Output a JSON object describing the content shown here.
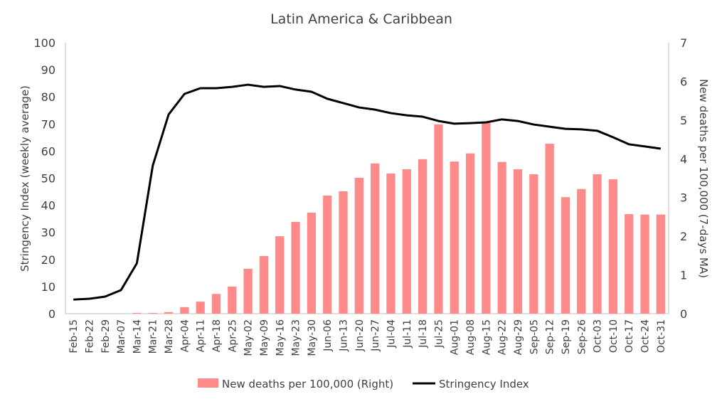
{
  "chart_data": {
    "type": "bar+line",
    "title": "Latin America & Caribbean",
    "ylabel_left": "Stringency Index (weekly average)",
    "ylabel_right": "New deaths per 100,000 (7-days MA)",
    "ylim_left": [
      0,
      100
    ],
    "ylim_right": [
      0,
      7
    ],
    "yticks_left": [
      0,
      10,
      20,
      30,
      40,
      50,
      60,
      70,
      80,
      90,
      100
    ],
    "yticks_right": [
      0,
      1,
      2,
      3,
      4,
      5,
      6,
      7
    ],
    "grid": false,
    "legend_position": "bottom",
    "categories": [
      "Feb-15",
      "Feb-22",
      "Feb-29",
      "Mar-07",
      "Mar-14",
      "Mar-21",
      "Mar-28",
      "Apr-04",
      "Apr-11",
      "Apr-18",
      "Apr-25",
      "May-02",
      "May-09",
      "May-16",
      "May-23",
      "May-30",
      "Jun-06",
      "Jun-13",
      "Jun-20",
      "Jun-27",
      "Jul-04",
      "Jul-11",
      "Jul-18",
      "Jul-25",
      "Aug-01",
      "Aug-08",
      "Aug-15",
      "Aug-22",
      "Aug-29",
      "Sep-05",
      "Sep-12",
      "Sep-19",
      "Sep-26",
      "Oct-03",
      "Oct-10",
      "Oct-17",
      "Oct-24",
      "Oct-31"
    ],
    "series": [
      {
        "name": "New deaths per 100,000 (Right)",
        "type": "bar",
        "axis": "right",
        "color": "#FF8A8A",
        "values": [
          0,
          0,
          0,
          0,
          0.02,
          0.02,
          0.04,
          0.17,
          0.31,
          0.51,
          0.7,
          1.16,
          1.49,
          2.0,
          2.37,
          2.61,
          3.05,
          3.16,
          3.51,
          3.88,
          3.62,
          3.73,
          3.99,
          4.89,
          3.93,
          4.14,
          4.93,
          3.92,
          3.73,
          3.6,
          4.39,
          3.01,
          3.22,
          3.6,
          3.47,
          2.57,
          2.56,
          2.56
        ]
      },
      {
        "name": "Stringency Index",
        "type": "line",
        "axis": "left",
        "color": "#000000",
        "values": [
          5.2,
          5.5,
          6.3,
          8.7,
          18.6,
          54.6,
          73.5,
          81.1,
          83.2,
          83.2,
          83.7,
          84.5,
          83.7,
          84.0,
          82.7,
          81.9,
          79.3,
          77.7,
          76.1,
          75.3,
          74.0,
          73.2,
          72.7,
          71.1,
          70.1,
          70.3,
          70.6,
          71.7,
          71.1,
          69.8,
          69.0,
          68.2,
          68.0,
          67.5,
          65.1,
          62.5,
          61.7,
          60.9
        ]
      }
    ]
  }
}
